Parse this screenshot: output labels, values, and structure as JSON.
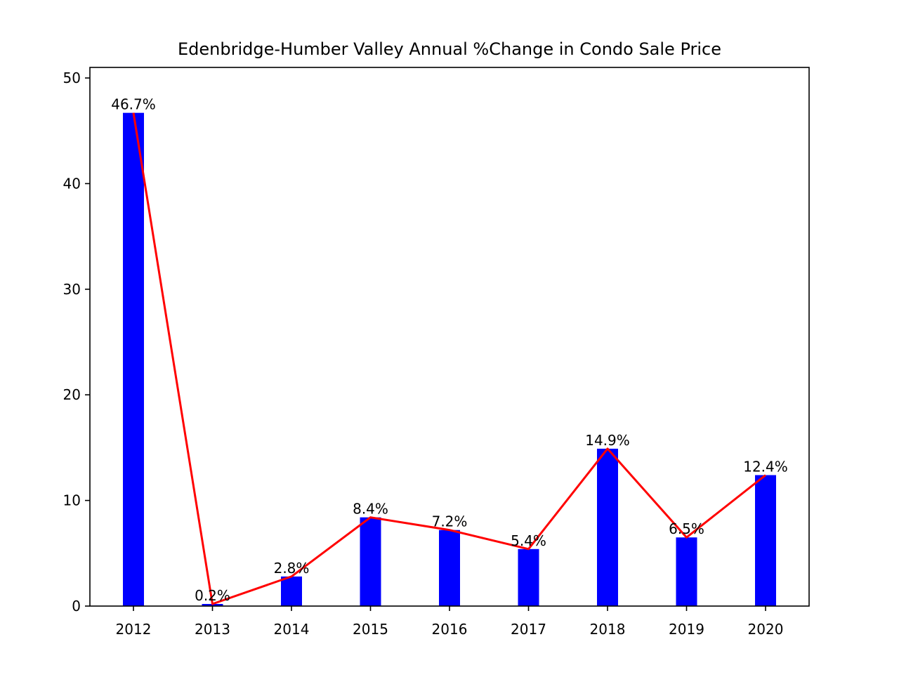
{
  "chart_data": {
    "type": "bar",
    "title": "Edenbridge-Humber Valley Annual %Change in Condo Sale Price",
    "xlabel": "",
    "ylabel": "",
    "categories": [
      "2012",
      "2013",
      "2014",
      "2015",
      "2016",
      "2017",
      "2018",
      "2019",
      "2020"
    ],
    "series": [
      {
        "name": "Annual % change (bars)",
        "kind": "bar",
        "color": "#0000ff",
        "values": [
          46.7,
          0.2,
          2.8,
          8.4,
          7.2,
          5.4,
          14.9,
          6.5,
          12.4
        ]
      },
      {
        "name": "Annual % change (line)",
        "kind": "line",
        "color": "#ff0000",
        "values": [
          46.7,
          0.2,
          2.8,
          8.4,
          7.2,
          5.4,
          14.9,
          6.5,
          12.4
        ]
      }
    ],
    "data_labels": [
      "46.7%",
      "0.2%",
      "2.8%",
      "8.4%",
      "7.2%",
      "5.4%",
      "14.9%",
      "6.5%",
      "12.4%"
    ],
    "ylim": [
      0,
      51
    ],
    "yticks": [
      0,
      10,
      20,
      30,
      40,
      50
    ],
    "ytick_labels": [
      "0",
      "10",
      "20",
      "30",
      "40",
      "50"
    ],
    "grid": false,
    "legend": "none"
  }
}
